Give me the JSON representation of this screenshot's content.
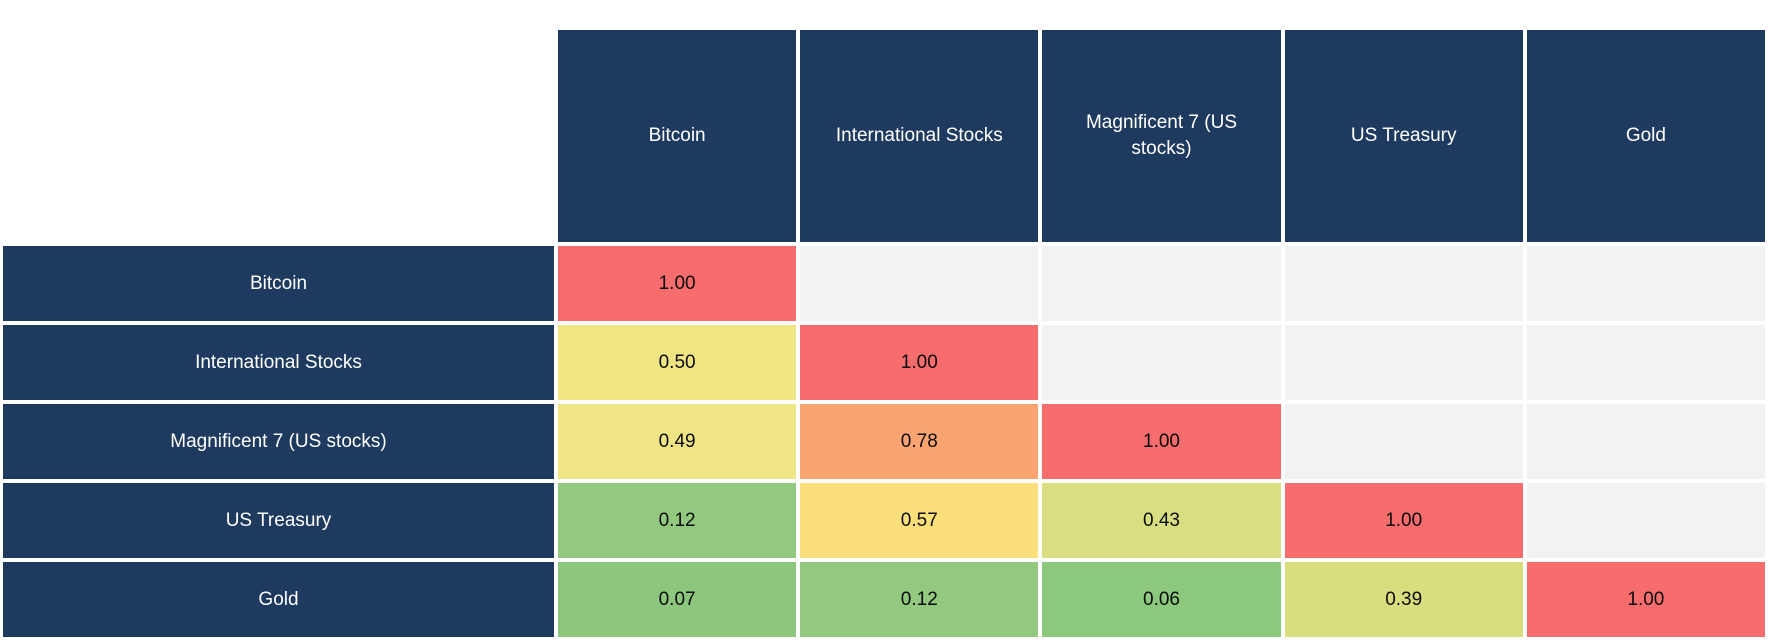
{
  "chart_data": {
    "type": "heatmap",
    "description": "Lower-triangular correlation matrix of asset classes",
    "categories": [
      "Bitcoin",
      "International Stocks",
      "Magnificent 7 (US stocks)",
      "US Treasury",
      "Gold"
    ],
    "rows": [
      {
        "label": "Bitcoin",
        "values": [
          1.0,
          null,
          null,
          null,
          null
        ]
      },
      {
        "label": "International Stocks",
        "values": [
          0.5,
          1.0,
          null,
          null,
          null
        ]
      },
      {
        "label": "Magnificent 7 (US stocks)",
        "values": [
          0.49,
          0.78,
          1.0,
          null,
          null
        ]
      },
      {
        "label": "US Treasury",
        "values": [
          0.12,
          0.57,
          0.43,
          1.0,
          null
        ]
      },
      {
        "label": "Gold",
        "values": [
          0.07,
          0.12,
          0.06,
          0.39,
          1.0
        ]
      }
    ],
    "cell_colors": [
      [
        "#F76C6D",
        null,
        null,
        null,
        null
      ],
      [
        "#F0E583",
        "#F76C6D",
        null,
        null,
        null
      ],
      [
        "#F0E584",
        "#F9A471",
        "#F76C6D",
        null,
        null
      ],
      [
        "#92C97E",
        "#FBDF7B",
        "#D9DF81",
        "#F76C6D",
        null
      ],
      [
        "#8DC77D",
        "#92C97E",
        "#8CC87D",
        "#D8DE7E",
        "#F76C6D"
      ]
    ],
    "value_format": "2-decimals",
    "layout": {
      "triangle": "lower",
      "header_bg": "#1F3A5F",
      "header_text_color": "#FFFFFF",
      "value_text_color": "#000000",
      "empty_cell_color": "#F2F2F2",
      "separator_color": "#FFFFFF",
      "legend": "none",
      "grid": "off"
    }
  }
}
